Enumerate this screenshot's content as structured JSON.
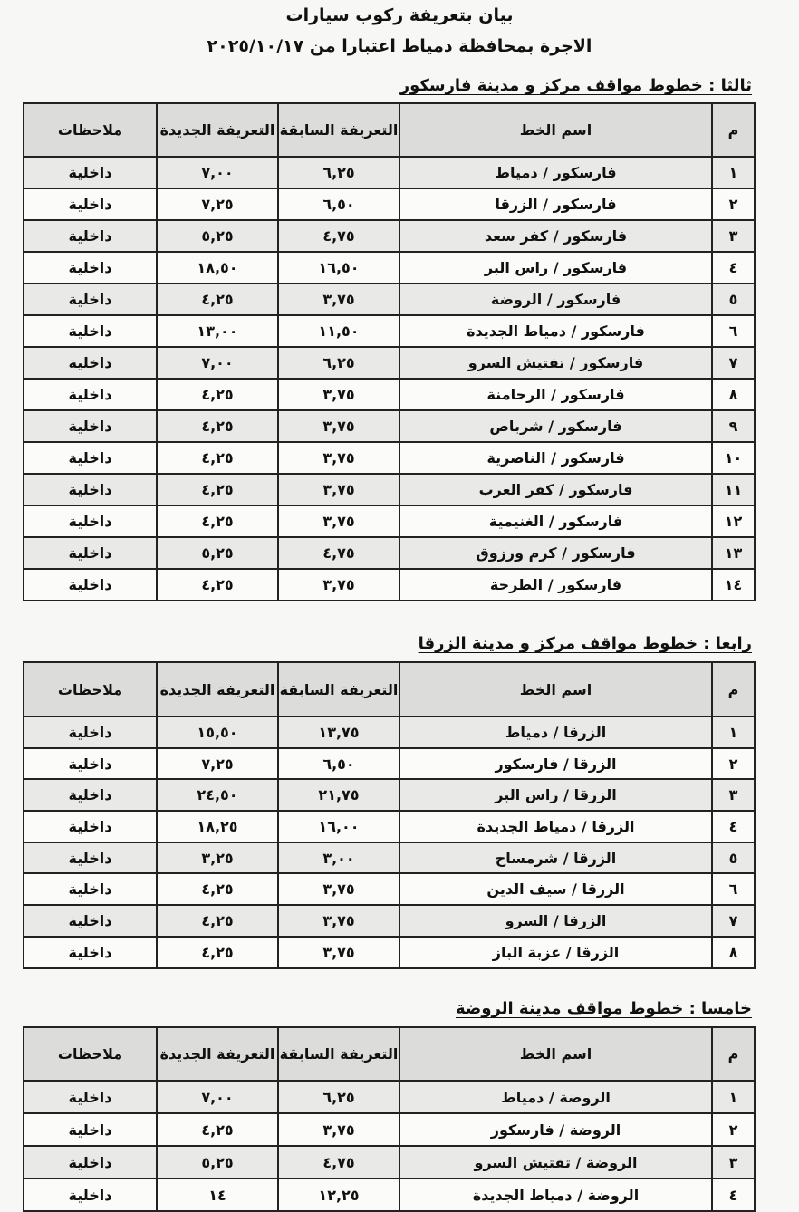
{
  "title_line1": "بيان بتعريفة ركوب  سيارات",
  "title_line2": "الاجرة بمحافظة دمياط اعتبارا من ٢٠٢٥/١٠/١٧",
  "headers": {
    "num": "م",
    "name": "اسم الخط",
    "prev": "التعريفة السابقة",
    "new": "التعريفة الجديدة",
    "notes": "ملاحظات"
  },
  "sections": [
    {
      "title": "ثالثا : خطوط مواقف مركز و مدينة فارسكور",
      "rows": [
        [
          "١",
          "فارسكور / دمياط",
          "٦,٢٥",
          "٧,٠٠",
          "داخلية"
        ],
        [
          "٢",
          "فارسكور / الزرقا",
          "٦,٥٠",
          "٧,٢٥",
          "داخلية"
        ],
        [
          "٣",
          "فارسكور / كفر سعد",
          "٤,٧٥",
          "٥,٢٥",
          "داخلية"
        ],
        [
          "٤",
          "فارسكور / راس البر",
          "١٦,٥٠",
          "١٨,٥٠",
          "داخلية"
        ],
        [
          "٥",
          "فارسكور / الروضة",
          "٣,٧٥",
          "٤,٢٥",
          "داخلية"
        ],
        [
          "٦",
          "فارسكور / دمياط الجديدة",
          "١١,٥٠",
          "١٣,٠٠",
          "داخلية"
        ],
        [
          "٧",
          "فارسكور / تفتيش السرو",
          "٦,٢٥",
          "٧,٠٠",
          "داخلية"
        ],
        [
          "٨",
          "فارسكور / الرحامنة",
          "٣,٧٥",
          "٤,٢٥",
          "داخلية"
        ],
        [
          "٩",
          "فارسكور / شرباص",
          "٣,٧٥",
          "٤,٢٥",
          "داخلية"
        ],
        [
          "١٠",
          "فارسكور / الناصرية",
          "٣,٧٥",
          "٤,٢٥",
          "داخلية"
        ],
        [
          "١١",
          "فارسكور / كفر العرب",
          "٣,٧٥",
          "٤,٢٥",
          "داخلية"
        ],
        [
          "١٢",
          "فارسكور / الغنيمية",
          "٣,٧٥",
          "٤,٢٥",
          "داخلية"
        ],
        [
          "١٣",
          "فارسكور / كرم  ورزوق",
          "٤,٧٥",
          "٥,٢٥",
          "داخلية"
        ],
        [
          "١٤",
          "فارسكور / الطرحة",
          "٣,٧٥",
          "٤,٢٥",
          "داخلية"
        ]
      ]
    },
    {
      "title": "رابعا : خطوط مواقف مركز و مدينة الزرقا",
      "rows": [
        [
          "١",
          "الزرقا / دمياط",
          "١٣,٧٥",
          "١٥,٥٠",
          "داخلية"
        ],
        [
          "٢",
          "الزرقا / فارسكور",
          "٦,٥٠",
          "٧,٢٥",
          "داخلية"
        ],
        [
          "٣",
          "الزرقا /  راس البر",
          "٢١,٧٥",
          "٢٤,٥٠",
          "داخلية"
        ],
        [
          "٤",
          "الزرقا / دمياط الجديدة",
          "١٦,٠٠",
          "١٨,٢٥",
          "داخلية"
        ],
        [
          "٥",
          "الزرقا / شرمساح",
          "٣,٠٠",
          "٣,٢٥",
          "داخلية"
        ],
        [
          "٦",
          "الزرقا / سيف الدين",
          "٣,٧٥",
          "٤,٢٥",
          "داخلية"
        ],
        [
          "٧",
          "الزرقا / السرو",
          "٣,٧٥",
          "٤,٢٥",
          "داخلية"
        ],
        [
          "٨",
          "الزرقا / عزبة الباز",
          "٣,٧٥",
          "٤,٢٥",
          "داخلية"
        ]
      ]
    },
    {
      "title": "خامسا : خطوط مواقف مدينة الروضة",
      "rows": [
        [
          "١",
          "الروضة / دمياط",
          "٦,٢٥",
          "٧,٠٠",
          "داخلية"
        ],
        [
          "٢",
          "الروضة / فارسكور",
          "٣,٧٥",
          "٤,٢٥",
          "داخلية"
        ],
        [
          "٣",
          "الروضة / تفتيش السرو",
          "٤,٧٥",
          "٥,٢٥",
          "داخلية"
        ],
        [
          "٤",
          "الروضة / دمياط الجديدة",
          "١٢,٢٥",
          "١٤",
          "داخلية"
        ]
      ]
    }
  ]
}
